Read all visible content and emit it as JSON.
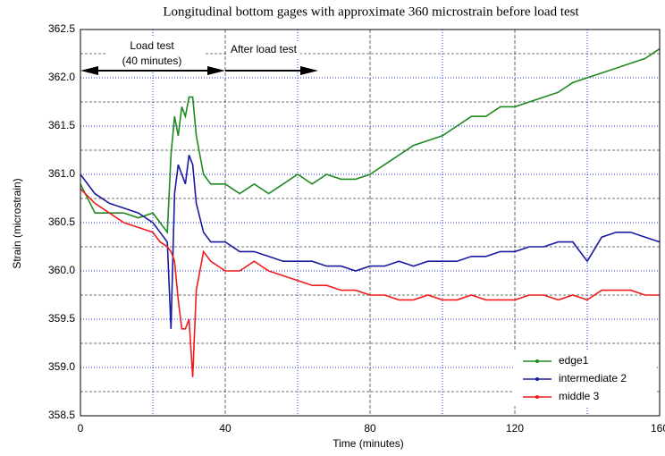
{
  "chart_data": {
    "type": "line",
    "title": "Longitudinal bottom gages with approximate 360 microstrain before load test",
    "x_label": "Time (minutes)",
    "y_label": "Strain (microstrain)",
    "annotations": [
      "Load test",
      "(40 minutes)",
      "After load test"
    ],
    "x": [
      0,
      4,
      8,
      12,
      16,
      20,
      22,
      24,
      25,
      26,
      27,
      28,
      29,
      30,
      31,
      32,
      34,
      36,
      40,
      44,
      48,
      52,
      56,
      60,
      64,
      68,
      72,
      76,
      80,
      84,
      88,
      92,
      96,
      100,
      104,
      108,
      112,
      116,
      120,
      124,
      128,
      132,
      136,
      140,
      144,
      148,
      152,
      156,
      160
    ],
    "series": [
      {
        "name": "edge1",
        "color": "#1f8a1f",
        "values": [
          360.9,
          360.6,
          360.6,
          360.6,
          360.55,
          360.6,
          360.5,
          360.4,
          361.2,
          361.6,
          361.4,
          361.7,
          361.6,
          361.8,
          361.8,
          361.4,
          361.0,
          360.9,
          360.9,
          360.8,
          360.9,
          360.8,
          360.9,
          361.0,
          360.9,
          361.0,
          360.95,
          360.95,
          361.0,
          361.1,
          361.2,
          361.3,
          361.35,
          361.4,
          361.5,
          361.6,
          361.6,
          361.7,
          361.7,
          361.75,
          361.8,
          361.85,
          361.95,
          362.0,
          362.05,
          362.1,
          362.15,
          362.2,
          362.3
        ]
      },
      {
        "name": "intermediate 2",
        "color": "#1a1aa0",
        "values": [
          361.0,
          360.8,
          360.7,
          360.65,
          360.6,
          360.5,
          360.4,
          360.3,
          359.4,
          360.8,
          361.1,
          361.0,
          360.9,
          361.2,
          361.1,
          360.7,
          360.4,
          360.3,
          360.3,
          360.2,
          360.2,
          360.15,
          360.1,
          360.1,
          360.1,
          360.05,
          360.05,
          360.0,
          360.05,
          360.05,
          360.1,
          360.05,
          360.1,
          360.1,
          360.1,
          360.15,
          360.15,
          360.2,
          360.2,
          360.25,
          360.25,
          360.3,
          360.3,
          360.1,
          360.35,
          360.4,
          360.4,
          360.35,
          360.3
        ]
      },
      {
        "name": "middle 3",
        "color": "#ee1c1c",
        "values": [
          360.85,
          360.7,
          360.6,
          360.5,
          360.45,
          360.4,
          360.3,
          360.25,
          360.2,
          360.1,
          359.7,
          359.4,
          359.4,
          359.5,
          358.9,
          359.8,
          360.2,
          360.1,
          360.0,
          360.0,
          360.1,
          360.0,
          359.95,
          359.9,
          359.85,
          359.85,
          359.8,
          359.8,
          359.75,
          359.75,
          359.7,
          359.7,
          359.75,
          359.7,
          359.7,
          359.75,
          359.7,
          359.7,
          359.7,
          359.75,
          359.75,
          359.7,
          359.75,
          359.7,
          359.8,
          359.8,
          359.8,
          359.75,
          359.75
        ]
      }
    ],
    "xlim": [
      0,
      160
    ],
    "xticks": [
      0,
      40,
      80,
      120,
      160
    ],
    "xminor_ticks": [
      20,
      60,
      100,
      140
    ],
    "ylim": [
      358.5,
      362.5
    ],
    "yticks": [
      358.5,
      {
        "value": 359.0,
        "label": "359.0"
      },
      359.5,
      {
        "value": 360.0,
        "label": "360.0"
      },
      360.5,
      {
        "value": 361.0,
        "label": "361.0"
      },
      361.5,
      {
        "value": 362.0,
        "label": "362.0"
      },
      362.5
    ],
    "yminor_ticks": [
      358.75,
      359.25,
      359.75,
      360.25,
      360.75,
      361.25,
      361.75,
      362.25
    ],
    "grid": true,
    "legend": "lower right"
  }
}
